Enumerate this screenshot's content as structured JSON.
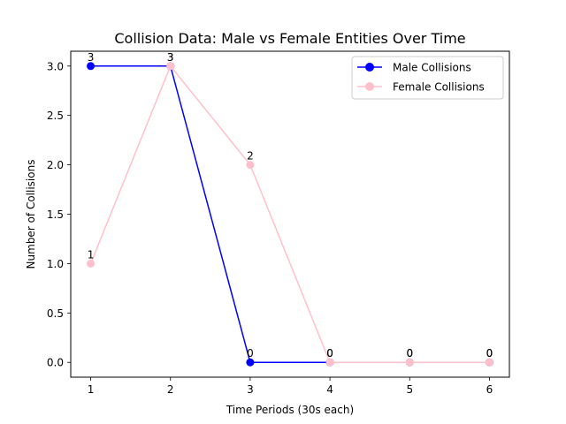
{
  "chart_data": {
    "type": "line",
    "title": "Collision Data: Male vs Female Entities Over Time",
    "xlabel": "Time Periods (30s each)",
    "ylabel": "Number of Collisions",
    "x": [
      1,
      2,
      3,
      4,
      5,
      6
    ],
    "xlim": [
      0.75,
      6.25
    ],
    "ylim": [
      -0.15,
      3.15
    ],
    "yticks": [
      0.0,
      0.5,
      1.0,
      1.5,
      2.0,
      2.5,
      3.0
    ],
    "ytick_labels": [
      "0.0",
      "0.5",
      "1.0",
      "1.5",
      "2.0",
      "2.5",
      "3.0"
    ],
    "xtick_labels": [
      "1",
      "2",
      "3",
      "4",
      "5",
      "6"
    ],
    "grid": false,
    "legend_position": "top-right",
    "series": [
      {
        "name": "Male Collisions",
        "color": "#0000ff",
        "marker": "circle",
        "values": [
          3,
          3,
          0,
          0,
          0,
          0
        ]
      },
      {
        "name": "Female Collisions",
        "color": "#ffc0cb",
        "marker": "circle",
        "values": [
          1,
          3,
          2,
          0,
          0,
          0
        ]
      }
    ]
  }
}
